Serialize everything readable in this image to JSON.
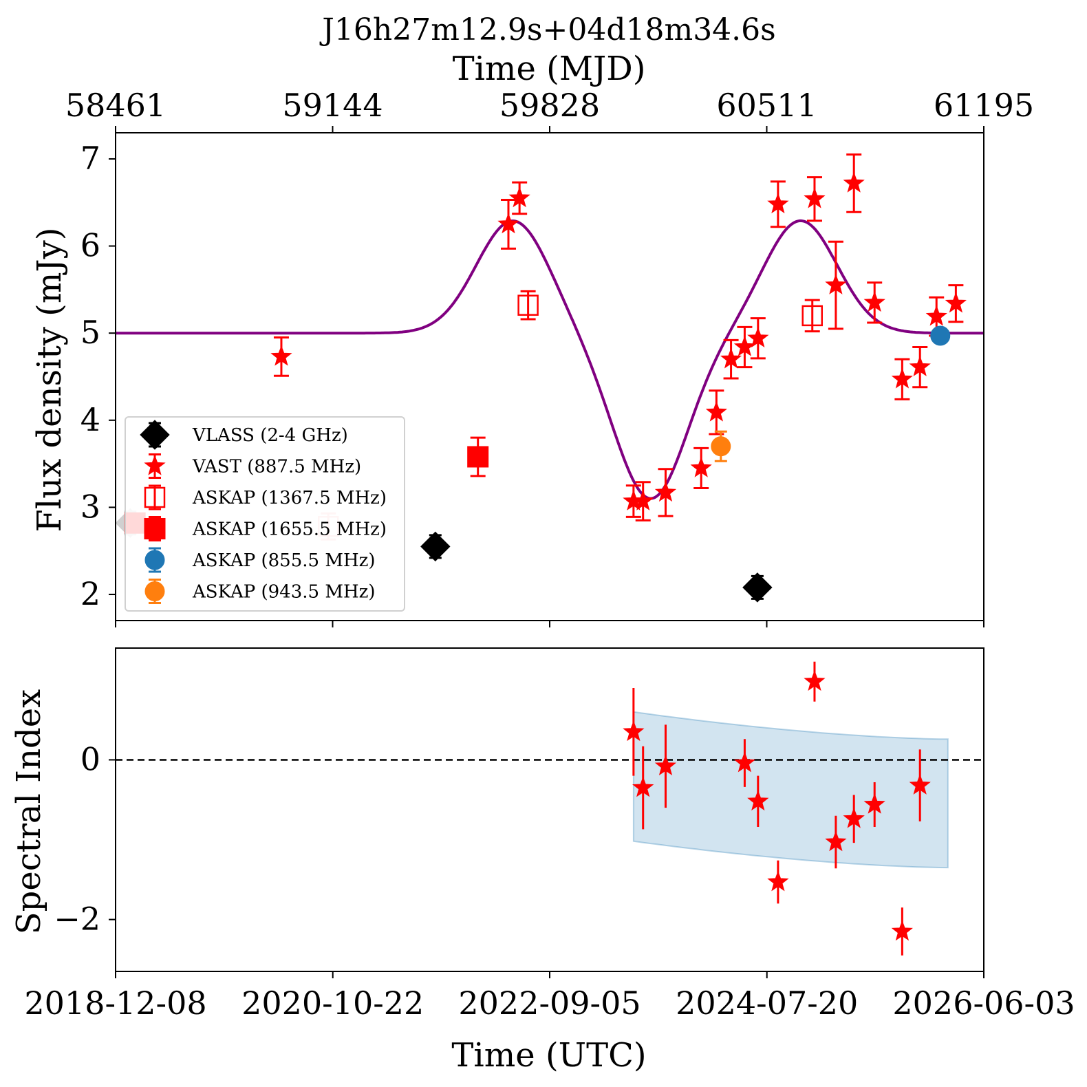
{
  "chart_data": [
    {
      "type": "scatter",
      "title": "J16h27m12.9s+04d18m34.6s",
      "top_xlabel": "Time (MJD)",
      "top_xticks": [
        "58461",
        "59144",
        "59828",
        "60511",
        "61195"
      ],
      "ylabel": "Flux density (mJy)",
      "xlim": [
        "2018-12-08",
        "2026-06-03"
      ],
      "ylim": [
        1.7,
        7.3
      ],
      "yticks": [
        "2",
        "3",
        "4",
        "5",
        "6",
        "7"
      ],
      "grid": false,
      "legend_position": "lower-left",
      "series": [
        {
          "name": "VLASS (2-4 GHz)",
          "marker": "diamond",
          "color": "#000000",
          "filled": true,
          "points": [
            {
              "x": "2019-01-23",
              "y": 2.82,
              "err": 0.13,
              "faded": true
            },
            {
              "x": "2021-09-10",
              "y": 2.55,
              "err": 0.13
            },
            {
              "x": "2024-06-20",
              "y": 2.08,
              "err": 0.13
            }
          ]
        },
        {
          "name": "VAST (887.5 MHz)",
          "marker": "star",
          "color": "#ff0000",
          "filled": true,
          "points": [
            {
              "x": "2020-05-13",
              "y": 4.73,
              "err": 0.22
            },
            {
              "x": "2022-04-28",
              "y": 6.25,
              "err": 0.28
            },
            {
              "x": "2022-06-02",
              "y": 6.55,
              "err": 0.18
            },
            {
              "x": "2023-05-27",
              "y": 3.07,
              "err": 0.18
            },
            {
              "x": "2023-06-26",
              "y": 3.07,
              "err": 0.22
            },
            {
              "x": "2023-09-05",
              "y": 3.17,
              "err": 0.27
            },
            {
              "x": "2023-12-26",
              "y": 3.45,
              "err": 0.23
            },
            {
              "x": "2024-02-12",
              "y": 4.09,
              "err": 0.25
            },
            {
              "x": "2024-03-29",
              "y": 4.7,
              "err": 0.22
            },
            {
              "x": "2024-05-11",
              "y": 4.84,
              "err": 0.23
            },
            {
              "x": "2024-06-22",
              "y": 4.94,
              "err": 0.23
            },
            {
              "x": "2024-08-24",
              "y": 6.48,
              "err": 0.26
            },
            {
              "x": "2024-12-17",
              "y": 6.54,
              "err": 0.25
            },
            {
              "x": "2025-02-22",
              "y": 5.55,
              "err": 0.5
            },
            {
              "x": "2025-04-20",
              "y": 6.72,
              "err": 0.33
            },
            {
              "x": "2025-06-24",
              "y": 5.35,
              "err": 0.23
            },
            {
              "x": "2025-09-19",
              "y": 4.47,
              "err": 0.23
            },
            {
              "x": "2025-11-14",
              "y": 4.61,
              "err": 0.23
            },
            {
              "x": "2026-01-05",
              "y": 5.19,
              "err": 0.22
            },
            {
              "x": "2026-03-07",
              "y": 5.34,
              "err": 0.21
            }
          ]
        },
        {
          "name": "ASKAP (1367.5 MHz)",
          "marker": "square",
          "color": "#ff0000",
          "filled": false,
          "points": [
            {
              "x": "2020-10-08",
              "y": 2.78,
              "err": 0.15,
              "faded": true
            },
            {
              "x": "2022-06-29",
              "y": 5.32,
              "err": 0.16
            },
            {
              "x": "2024-12-10",
              "y": 5.2,
              "err": 0.18
            }
          ]
        },
        {
          "name": "ASKAP (1655.5 MHz)",
          "marker": "square",
          "color": "#ff0000",
          "filled": true,
          "points": [
            {
              "x": "2019-02-07",
              "y": 2.82,
              "err": 0.1
            },
            {
              "x": "2022-01-22",
              "y": 3.58,
              "err": 0.22
            }
          ]
        },
        {
          "name": "ASKAP (855.5 MHz)",
          "marker": "circle",
          "color": "#1f77b4",
          "filled": true,
          "points": [
            {
              "x": "2026-01-17",
              "y": 4.97,
              "err": 0.05
            }
          ]
        },
        {
          "name": "ASKAP (943.5 MHz)",
          "marker": "circle",
          "color": "#ff7f0e",
          "filled": true,
          "points": [
            {
              "x": "2024-02-26",
              "y": 3.7,
              "err": 0.17
            }
          ]
        }
      ],
      "model_curve": {
        "color": "#800080",
        "baseline": 5.0,
        "amplitude": 1.29,
        "peak1": "2022-05-12",
        "peak2": "2024-11-03",
        "trough": "2023-07-20",
        "width_days": 115
      },
      "legend_entries": [
        "VLASS (2-4 GHz)",
        "VAST (887.5 MHz)",
        "ASKAP (1367.5 MHz)",
        "ASKAP (1655.5 MHz)",
        "ASKAP (855.5 MHz)",
        "ASKAP (943.5 MHz)"
      ]
    },
    {
      "type": "scatter",
      "ylabel": "Spectral Index",
      "xlabel": "Time (UTC)",
      "xlim": [
        "2018-12-08",
        "2026-06-03"
      ],
      "xticks": [
        "2018-12-08",
        "2020-10-22",
        "2022-09-05",
        "2024-07-20",
        "2026-06-03"
      ],
      "ylim": [
        -2.65,
        1.4
      ],
      "yticks": [
        "0",
        "−2"
      ],
      "reference_line": {
        "y": 0,
        "style": "dashed",
        "color": "#000000"
      },
      "band": {
        "color": "#1f77b4",
        "x_start": "2023-05-27",
        "x_end": "2026-02-10",
        "upper_start": 0.6,
        "upper_end": 0.26,
        "lower_start": -1.02,
        "lower_end": -1.35
      },
      "series": [
        {
          "name": "",
          "marker": "star",
          "color": "#ff0000",
          "points": [
            {
              "x": "2023-05-27",
              "y": 0.35,
              "err": 0.55
            },
            {
              "x": "2023-06-26",
              "y": -0.35,
              "err": 0.52
            },
            {
              "x": "2023-09-05",
              "y": -0.08,
              "err": 0.52
            },
            {
              "x": "2024-05-11",
              "y": -0.04,
              "err": 0.3
            },
            {
              "x": "2024-06-22",
              "y": -0.52,
              "err": 0.32
            },
            {
              "x": "2024-08-24",
              "y": -1.53,
              "err": 0.27
            },
            {
              "x": "2024-12-17",
              "y": 0.98,
              "err": 0.25
            },
            {
              "x": "2025-02-22",
              "y": -1.03,
              "err": 0.33
            },
            {
              "x": "2025-04-20",
              "y": -0.74,
              "err": 0.3
            },
            {
              "x": "2025-06-24",
              "y": -0.56,
              "err": 0.28
            },
            {
              "x": "2025-09-19",
              "y": -2.15,
              "err": 0.3
            },
            {
              "x": "2025-11-14",
              "y": -0.32,
              "err": 0.45
            }
          ]
        }
      ]
    }
  ]
}
